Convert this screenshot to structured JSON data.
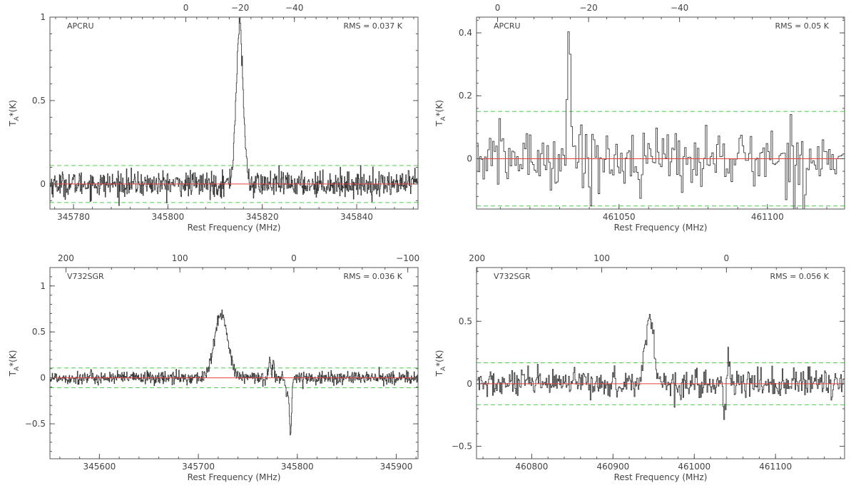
{
  "colors": {
    "spectrum": "#3a3a3a",
    "baseline": "#e04040",
    "rms_band": "#4cd04c",
    "frame": "#555555",
    "text": "#444444"
  },
  "chart_data": [
    {
      "type": "line",
      "step": true,
      "source_label": "APCRU",
      "rms_text": "RMS = 0.037 K",
      "rms": 0.037,
      "xlabel": "Rest Frequency (MHz)",
      "ylabel_main": "T",
      "ylabel_sub": "A",
      "ylabel_rest": "*(K)",
      "xlim": [
        345775,
        345853
      ],
      "ylim": [
        -0.15,
        1.0
      ],
      "xticks": [
        345780,
        345800,
        345820,
        345840
      ],
      "xtick_labels": [
        "345780",
        "345800",
        "345820",
        "345840"
      ],
      "yticks": [
        0,
        0.5,
        1
      ],
      "ytick_labels": [
        "0",
        "0.5",
        "1"
      ],
      "top_axis": {
        "x_at": [
          345803.8,
          345826.8
        ],
        "values": [
          0,
          -40
        ],
        "ticks": [
          0,
          -20,
          -40
        ],
        "tick_labels": [
          "0",
          "−20",
          "−40"
        ]
      },
      "rms_band": [
        -0.111,
        0.111
      ],
      "baseline": 0,
      "lines": [
        {
          "center": 345815.2,
          "amp": 0.93,
          "sigma": 0.75
        }
      ],
      "noise_n": 780
    },
    {
      "type": "line",
      "step": true,
      "source_label": "APCRU",
      "rms_text": "RMS = 0.05 K",
      "rms": 0.05,
      "xlabel": "Rest Frequency (MHz)",
      "ylabel_main": "T",
      "ylabel_sub": "A",
      "ylabel_rest": "*(K)",
      "xlim": [
        461002,
        461126
      ],
      "ylim": [
        -0.16,
        0.45
      ],
      "xticks": [
        461050,
        461100
      ],
      "xtick_labels": [
        "461050",
        "461100"
      ],
      "yticks": [
        0,
        0.2,
        0.4
      ],
      "ytick_labels": [
        "0",
        "0.2",
        "0.4"
      ],
      "top_axis": {
        "x_at": [
          461009.1,
          461070.4
        ],
        "values": [
          0,
          -40
        ],
        "ticks": [
          0,
          -20,
          -40
        ],
        "tick_labels": [
          "0",
          "−20",
          "−40"
        ]
      },
      "rms_band": [
        -0.15,
        0.15
      ],
      "baseline": 0,
      "lines": [
        {
          "center": 461033.2,
          "amp": 0.41,
          "sigma": 0.6
        }
      ],
      "noise_n": 230
    },
    {
      "type": "line",
      "step": true,
      "source_label": "V732SGR",
      "rms_text": "RMS = 0.036 K",
      "rms": 0.036,
      "xlabel": "Rest Frequency (MHz)",
      "ylabel_main": "T",
      "ylabel_sub": "A",
      "ylabel_rest": "*(K)",
      "xlim": [
        345550,
        345922
      ],
      "ylim": [
        -0.88,
        1.2
      ],
      "xticks": [
        345600,
        345700,
        345800,
        345900
      ],
      "xtick_labels": [
        "345600",
        "345700",
        "345800",
        "345900"
      ],
      "yticks": [
        -0.5,
        0,
        0.5,
        1
      ],
      "ytick_labels": [
        "−0.5",
        "0",
        "0.5",
        "1"
      ],
      "top_axis": {
        "x_at": [
          345566.2,
          345796.5
        ],
        "values": [
          200,
          0
        ],
        "ticks": [
          200,
          100,
          0,
          -100
        ],
        "tick_labels": [
          "200",
          "100",
          "0",
          "−100"
        ]
      },
      "rms_band": [
        -0.108,
        0.108
      ],
      "baseline": 0,
      "lines": [
        {
          "center": 345723,
          "amp": 0.7,
          "sigma": 6.5
        },
        {
          "center": 345772,
          "amp": 0.22,
          "sigma": 1.0
        },
        {
          "center": 345776,
          "amp": 0.18,
          "sigma": 0.9
        },
        {
          "center": 345793,
          "amp": -0.6,
          "sigma": 1.2
        },
        {
          "center": 345789,
          "amp": -0.2,
          "sigma": 1.0
        }
      ],
      "noise_n": 820
    },
    {
      "type": "line",
      "step": true,
      "source_label": "V732SGR",
      "rms_text": "RMS = 0.056 K",
      "rms": 0.056,
      "xlabel": "Rest Frequency (MHz)",
      "ylabel_main": "T",
      "ylabel_sub": "A",
      "ylabel_rest": "*(K)",
      "xlim": [
        460732,
        461185
      ],
      "ylim": [
        -0.6,
        0.93
      ],
      "xticks": [
        460800,
        460900,
        461000,
        461100
      ],
      "xtick_labels": [
        "460800",
        "460900",
        "461000",
        "461100"
      ],
      "yticks": [
        -0.5,
        0,
        0.5
      ],
      "ytick_labels": [
        "−0.5",
        "0",
        "0.5"
      ],
      "top_axis": {
        "x_at": [
          460732.6,
          461039.6
        ],
        "values": [
          200,
          0
        ],
        "ticks": [
          200,
          100,
          0,
          -100
        ],
        "tick_labels": [
          "200",
          "100",
          "0",
          "−100"
        ]
      },
      "rms_band": [
        -0.168,
        0.168
      ],
      "baseline": 0,
      "lines": [
        {
          "center": 460945,
          "amp": 0.52,
          "sigma": 5.5
        },
        {
          "center": 461037,
          "amp": -0.25,
          "sigma": 1.2
        },
        {
          "center": 461042,
          "amp": 0.15,
          "sigma": 1.0
        }
      ],
      "noise_n": 460
    }
  ]
}
